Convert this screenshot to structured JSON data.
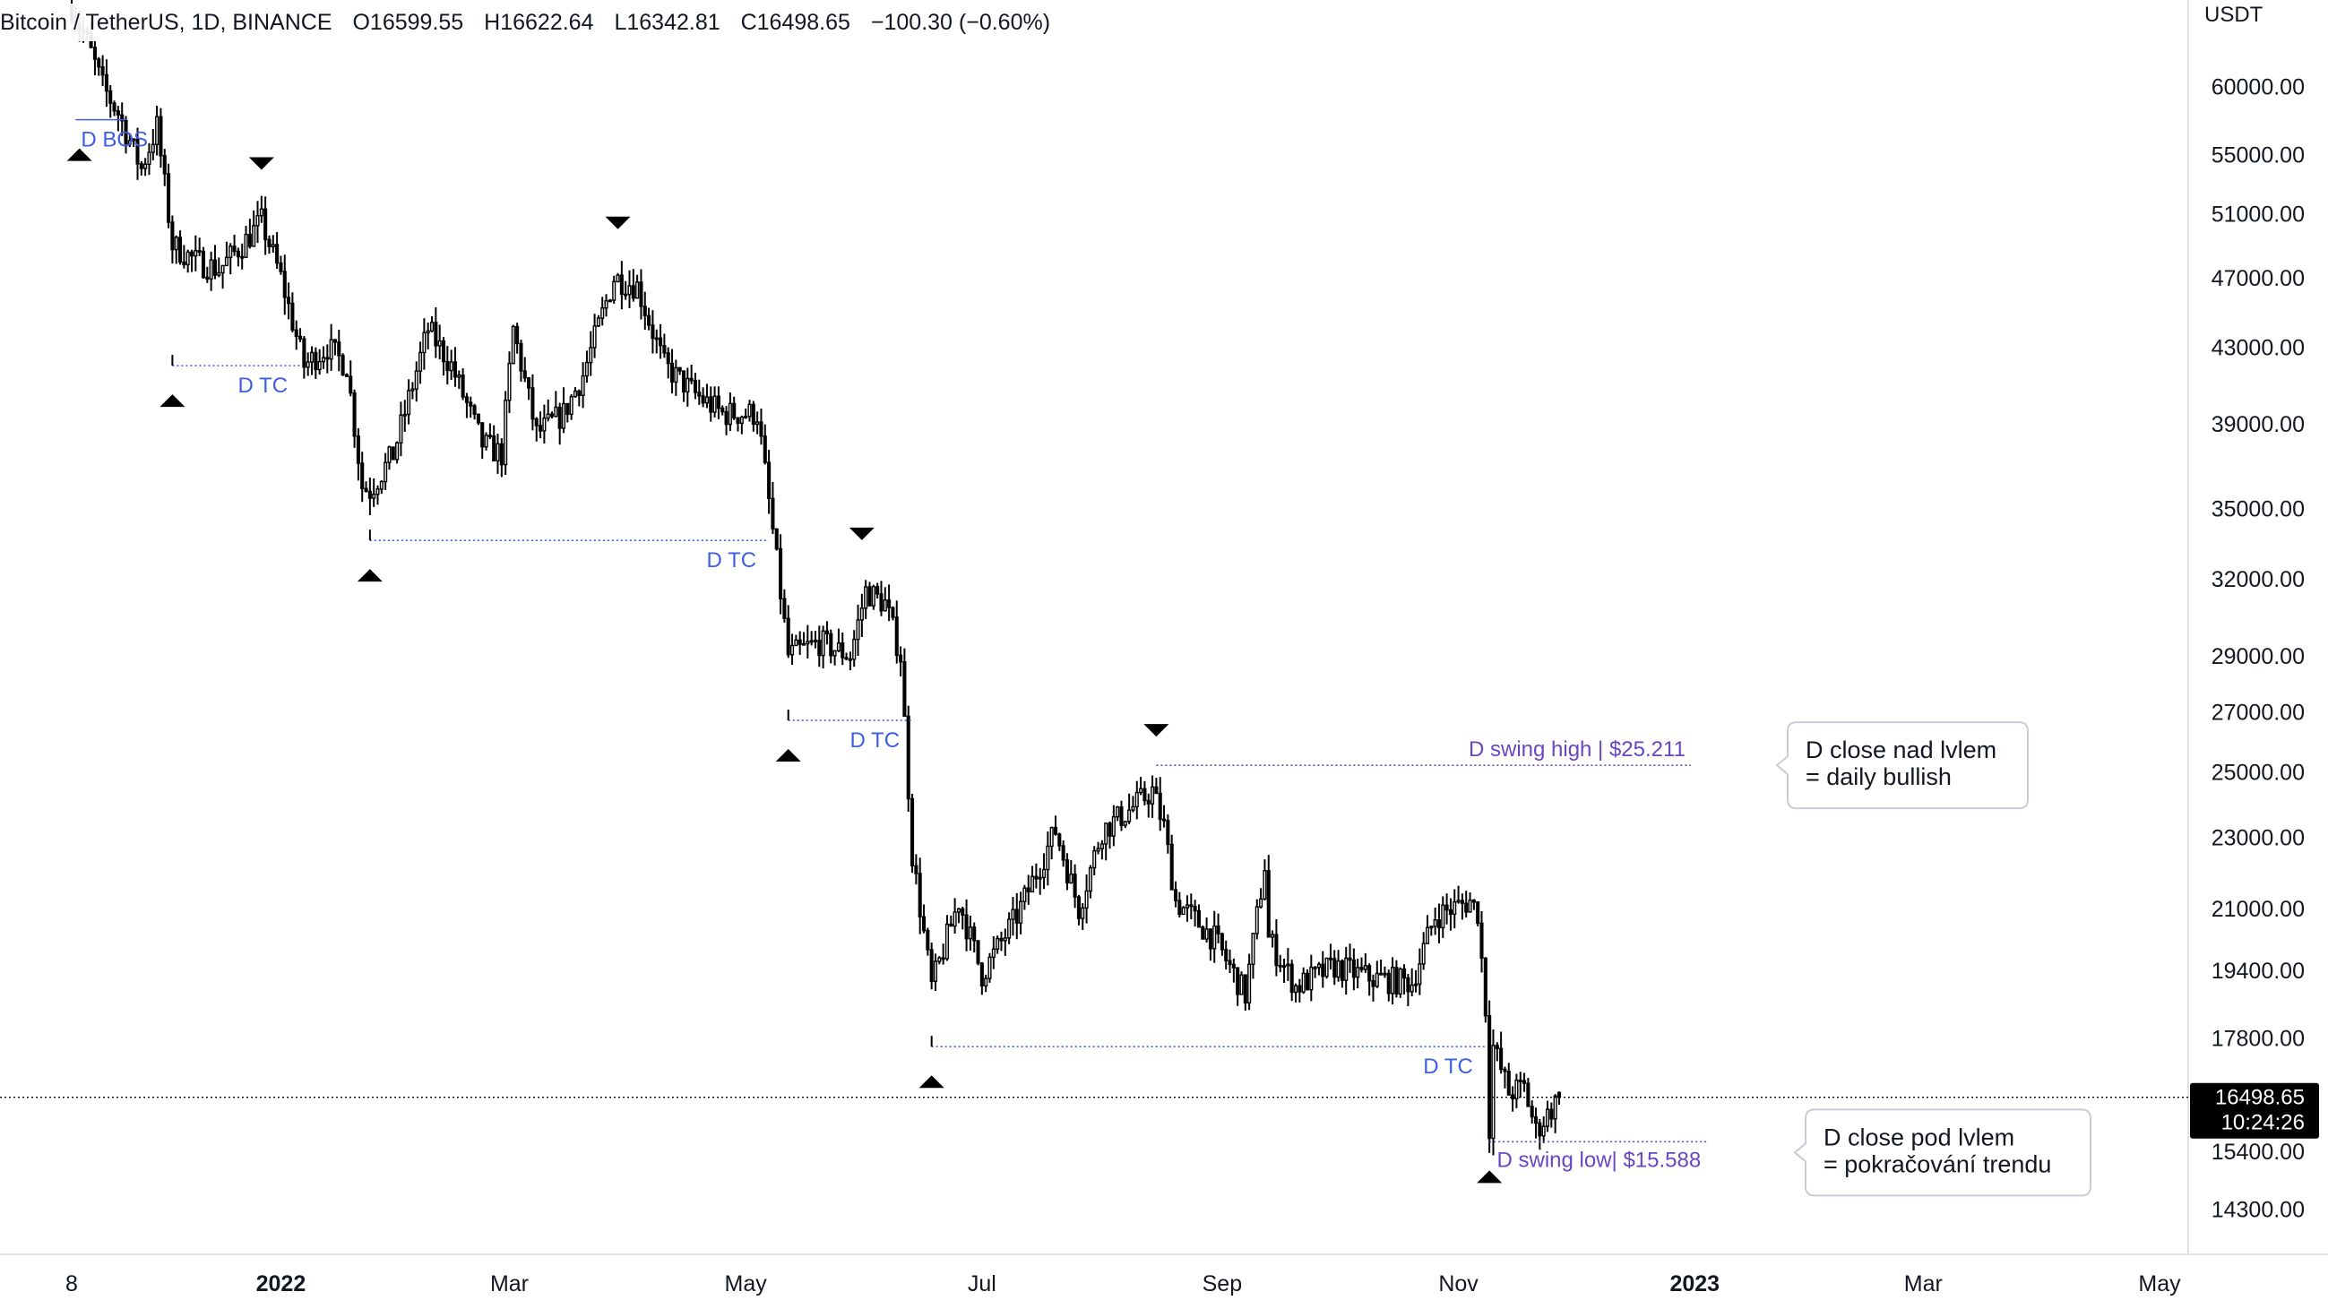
{
  "legend": {
    "symbol": "Bitcoin / TetherUS, 1D, BINANCE",
    "open_label": "O",
    "open": "16599.55",
    "high_label": "H",
    "high": "16622.64",
    "low_label": "L",
    "low": "16342.81",
    "close_label": "C",
    "close": "16498.65",
    "change": "−100.30 (−0.60%)"
  },
  "price_axis": {
    "currency": "USDT",
    "ticks": [
      "60000.00",
      "55000.00",
      "51000.00",
      "47000.00",
      "43000.00",
      "39000.00",
      "35000.00",
      "32000.00",
      "29000.00",
      "27000.00",
      "25000.00",
      "23000.00",
      "21000.00",
      "19400.00",
      "17800.00",
      "15400.00",
      "14300.00"
    ]
  },
  "time_axis": {
    "ticks": [
      {
        "label": "8",
        "bold": false
      },
      {
        "label": "2022",
        "bold": true
      },
      {
        "label": "Mar",
        "bold": false
      },
      {
        "label": "May",
        "bold": false
      },
      {
        "label": "Jul",
        "bold": false
      },
      {
        "label": "Sep",
        "bold": false
      },
      {
        "label": "Nov",
        "bold": false
      },
      {
        "label": "2023",
        "bold": true
      },
      {
        "label": "Mar",
        "bold": false
      },
      {
        "label": "May",
        "bold": false
      }
    ]
  },
  "last_price": {
    "price": "16498.65",
    "countdown": "10:24:26"
  },
  "colors": {
    "candle": "#000000",
    "level_blue": "#3d5fe0",
    "level_purple": "#6a45c2",
    "price_tag_bg": "#000000",
    "grid_border": "#e0e3eb",
    "annotation_border": "#c9ccd6"
  },
  "chart_data": {
    "type": "candlestick",
    "symbol": "Bitcoin / TetherUS",
    "interval": "1D",
    "exchange": "BINANCE",
    "y_scale": "log",
    "ylim": [
      13500,
      67000
    ],
    "xlim": [
      "2021-11-08",
      "2023-05-01"
    ],
    "ohlc_anchor_closes": [
      [
        "2021-11-08",
        66500
      ],
      [
        "2021-11-12",
        63500
      ],
      [
        "2021-11-16",
        60000
      ],
      [
        "2021-11-20",
        58000
      ],
      [
        "2021-11-26",
        54000
      ],
      [
        "2021-11-30",
        57000
      ],
      [
        "2021-12-04",
        49000
      ],
      [
        "2021-12-10",
        48000
      ],
      [
        "2021-12-16",
        47500
      ],
      [
        "2021-12-22",
        49000
      ],
      [
        "2021-12-27",
        50500
      ],
      [
        "2022-01-01",
        47000
      ],
      [
        "2022-01-07",
        42000
      ],
      [
        "2022-01-13",
        43000
      ],
      [
        "2022-01-18",
        42000
      ],
      [
        "2022-01-22",
        36000
      ],
      [
        "2022-01-24",
        35800
      ],
      [
        "2022-01-30",
        37500
      ],
      [
        "2022-02-08",
        44000
      ],
      [
        "2022-02-14",
        42000
      ],
      [
        "2022-02-22",
        38000
      ],
      [
        "2022-02-27",
        37500
      ],
      [
        "2022-03-02",
        44000
      ],
      [
        "2022-03-08",
        38500
      ],
      [
        "2022-03-15",
        39500
      ],
      [
        "2022-03-20",
        41500
      ],
      [
        "2022-03-28",
        47000
      ],
      [
        "2022-04-03",
        46500
      ],
      [
        "2022-04-10",
        42000
      ],
      [
        "2022-04-18",
        40500
      ],
      [
        "2022-04-25",
        39500
      ],
      [
        "2022-05-04",
        39500
      ],
      [
        "2022-05-08",
        34000
      ],
      [
        "2022-05-12",
        29000
      ],
      [
        "2022-05-20",
        29500
      ],
      [
        "2022-05-28",
        29000
      ],
      [
        "2022-06-01",
        31500
      ],
      [
        "2022-06-06",
        31000
      ],
      [
        "2022-06-10",
        29000
      ],
      [
        "2022-06-13",
        22500
      ],
      [
        "2022-06-18",
        19000
      ],
      [
        "2022-06-25",
        21200
      ],
      [
        "2022-07-01",
        19300
      ],
      [
        "2022-07-10",
        20800
      ],
      [
        "2022-07-20",
        23200
      ],
      [
        "2022-07-26",
        21000
      ],
      [
        "2022-08-01",
        23200
      ],
      [
        "2022-08-08",
        23800
      ],
      [
        "2022-08-14",
        24400
      ],
      [
        "2022-08-17",
        23300
      ],
      [
        "2022-08-20",
        21200
      ],
      [
        "2022-08-30",
        20200
      ],
      [
        "2022-09-07",
        18800
      ],
      [
        "2022-09-12",
        22200
      ],
      [
        "2022-09-13",
        20200
      ],
      [
        "2022-09-20",
        19000
      ],
      [
        "2022-09-30",
        19500
      ],
      [
        "2022-10-10",
        19200
      ],
      [
        "2022-10-20",
        19100
      ],
      [
        "2022-10-26",
        20800
      ],
      [
        "2022-11-04",
        21200
      ],
      [
        "2022-11-06",
        20900
      ],
      [
        "2022-11-08",
        18500
      ],
      [
        "2022-11-09",
        15900
      ],
      [
        "2022-11-10",
        17600
      ],
      [
        "2022-11-14",
        16600
      ],
      [
        "2022-11-18",
        16700
      ],
      [
        "2022-11-21",
        15800
      ],
      [
        "2022-11-27",
        16498.65
      ]
    ],
    "levels": [
      {
        "label": "D BOS",
        "date_from": "2021-11-09",
        "date_to": "2021-11-22",
        "price": 57500,
        "type": "bos"
      },
      {
        "label": "D TC",
        "date_from": "2021-12-04",
        "date_to": "2022-01-06",
        "price": 42000,
        "type": "tc"
      },
      {
        "label": "D TC",
        "date_from": "2022-01-24",
        "date_to": "2022-05-07",
        "price": 33600,
        "type": "tc"
      },
      {
        "label": "D TC",
        "date_from": "2022-05-12",
        "date_to": "2022-06-13",
        "price": 26700,
        "type": "tc"
      },
      {
        "label": "D TC",
        "date_from": "2022-06-18",
        "date_to": "2022-11-08",
        "price": 17600,
        "type": "tc"
      },
      {
        "label": "D swing high | $25.211",
        "date_from": "2022-08-15",
        "date_to": "2022-12-31",
        "price": 25211,
        "type": "swing"
      },
      {
        "label": "D swing low| $15.588",
        "date_from": "2022-11-09",
        "date_to": "2023-01-04",
        "price": 15588,
        "type": "swing"
      }
    ],
    "pivot_markers": [
      {
        "date": "2021-11-10",
        "price": 57500,
        "kind": "low"
      },
      {
        "date": "2021-12-27",
        "price": 52000,
        "kind": "high"
      },
      {
        "date": "2021-12-04",
        "price": 42000,
        "kind": "low"
      },
      {
        "date": "2022-01-24",
        "price": 33600,
        "kind": "low"
      },
      {
        "date": "2022-03-29",
        "price": 48200,
        "kind": "high"
      },
      {
        "date": "2022-05-12",
        "price": 26700,
        "kind": "low"
      },
      {
        "date": "2022-05-31",
        "price": 32400,
        "kind": "high"
      },
      {
        "date": "2022-06-18",
        "price": 17600,
        "kind": "low"
      },
      {
        "date": "2022-08-15",
        "price": 25211,
        "kind": "high"
      },
      {
        "date": "2022-11-09",
        "price": 15588,
        "kind": "low"
      }
    ],
    "annotations": [
      {
        "line1": "D close nad lvlem",
        "line2": "= daily bullish",
        "anchor_price": 25211
      },
      {
        "line1": "D close pod lvlem",
        "line2": "= pokračování trendu",
        "anchor_price": 15588
      }
    ],
    "last_price": 16498.65
  }
}
